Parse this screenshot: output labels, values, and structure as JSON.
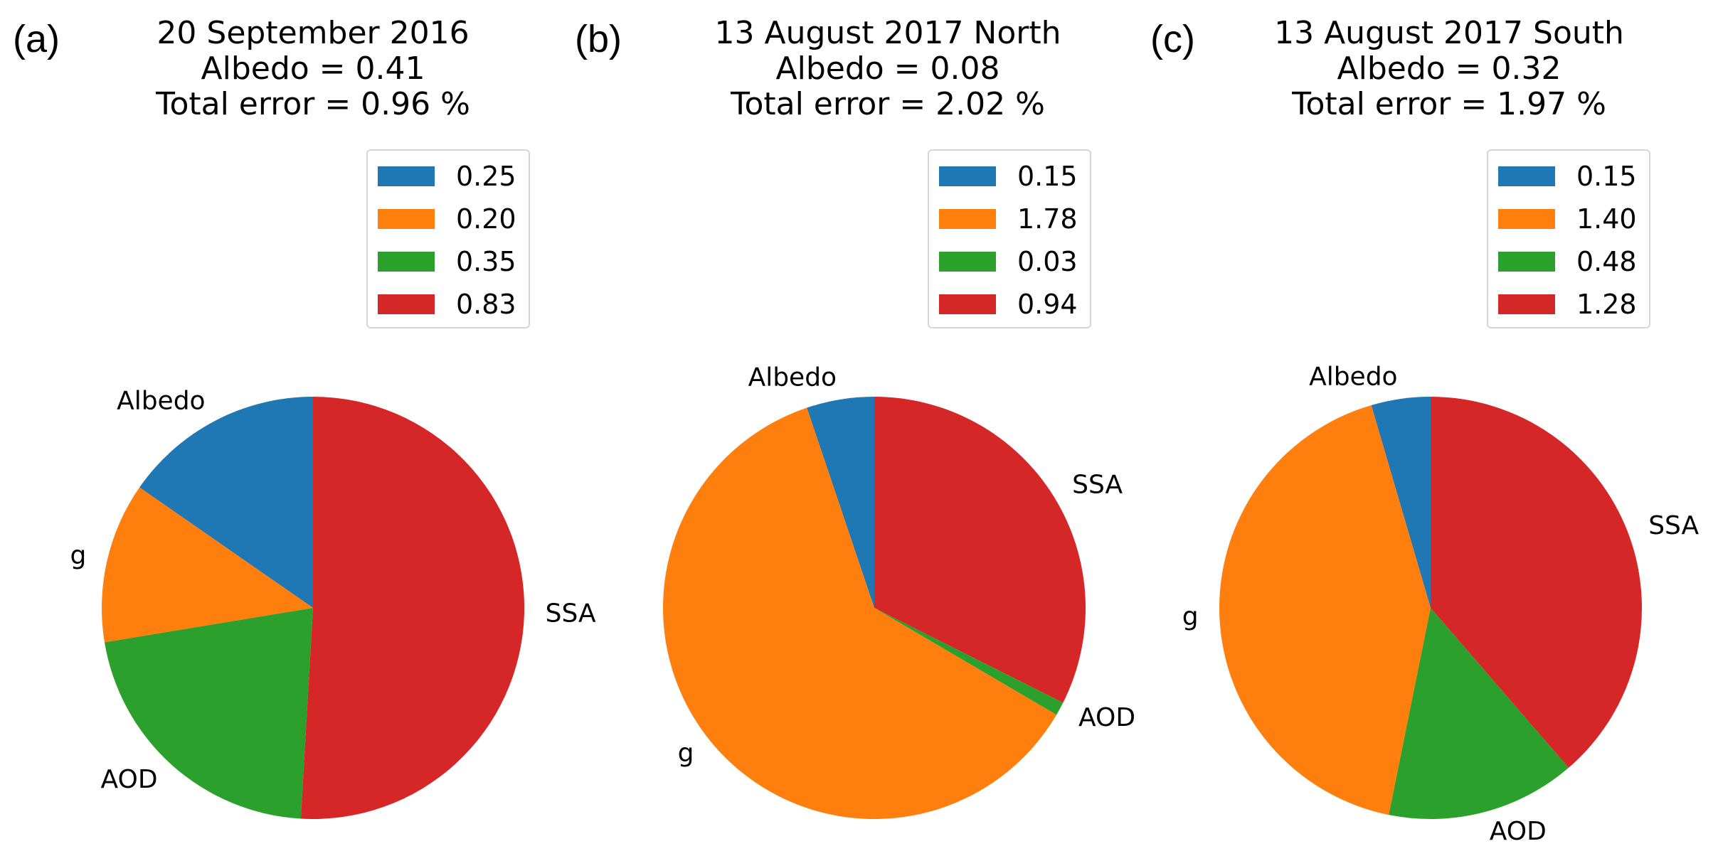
{
  "colors": {
    "Albedo": "#1f77b4",
    "g": "#ff7f0e",
    "AOD": "#2ca02c",
    "SSA": "#d62728"
  },
  "chart_data": [
    {
      "type": "pie",
      "panel_label": "(a)",
      "title_lines": [
        "20 September 2016",
        "Albedo = 0.41",
        "Total error = 0.96 %"
      ],
      "labels": [
        "Albedo",
        "g",
        "AOD",
        "SSA"
      ],
      "values": [
        0.25,
        0.2,
        0.35,
        0.83
      ],
      "legend": [
        "0.25",
        "0.20",
        "0.35",
        "0.83"
      ]
    },
    {
      "type": "pie",
      "panel_label": "(b)",
      "title_lines": [
        "13 August 2017 North",
        "Albedo = 0.08",
        "Total error = 2.02 %"
      ],
      "labels": [
        "Albedo",
        "g",
        "AOD",
        "SSA"
      ],
      "values": [
        0.15,
        1.78,
        0.03,
        0.94
      ],
      "legend": [
        "0.15",
        "1.78",
        "0.03",
        "0.94"
      ]
    },
    {
      "type": "pie",
      "panel_label": "(c)",
      "title_lines": [
        "13 August 2017 South",
        "Albedo = 0.32",
        "Total error = 1.97 %"
      ],
      "labels": [
        "Albedo",
        "g",
        "AOD",
        "SSA"
      ],
      "values": [
        0.15,
        1.4,
        0.48,
        1.28
      ],
      "legend": [
        "0.15",
        "1.40",
        "0.48",
        "1.28"
      ]
    }
  ]
}
